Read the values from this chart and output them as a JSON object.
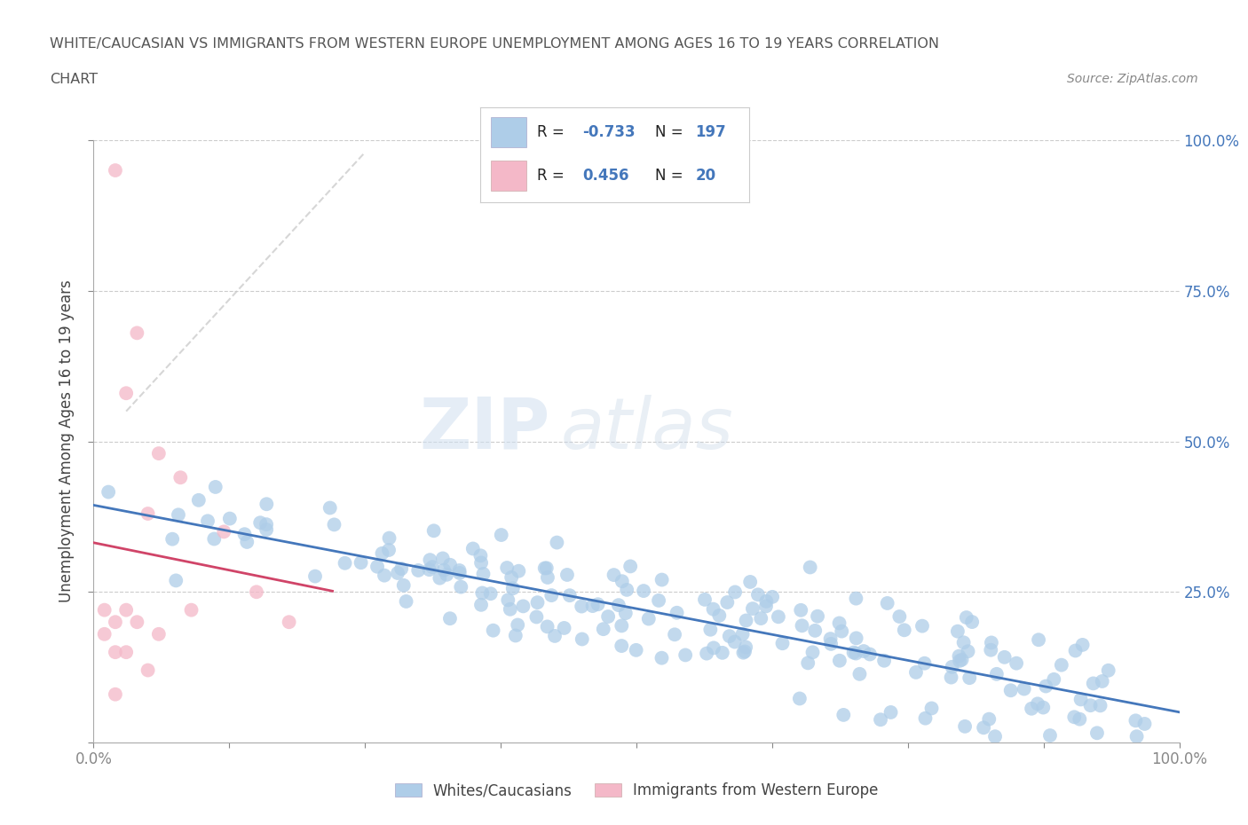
{
  "title_line1": "WHITE/CAUCASIAN VS IMMIGRANTS FROM WESTERN EUROPE UNEMPLOYMENT AMONG AGES 16 TO 19 YEARS CORRELATION",
  "title_line2": "CHART",
  "source": "Source: ZipAtlas.com",
  "ylabel": "Unemployment Among Ages 16 to 19 years",
  "blue_color": "#aecde8",
  "pink_color": "#f4b8c8",
  "blue_line_color": "#4477bb",
  "pink_line_color": "#d04468",
  "gray_dash_color": "#cccccc",
  "legend_label_blue": "Whites/Caucasians",
  "legend_label_pink": "Immigrants from Western Europe",
  "watermark_zip": "ZIP",
  "watermark_atlas": "atlas",
  "background_color": "#ffffff",
  "grid_color": "#cccccc",
  "right_tick_color": "#4477bb",
  "text_color": "#555555"
}
